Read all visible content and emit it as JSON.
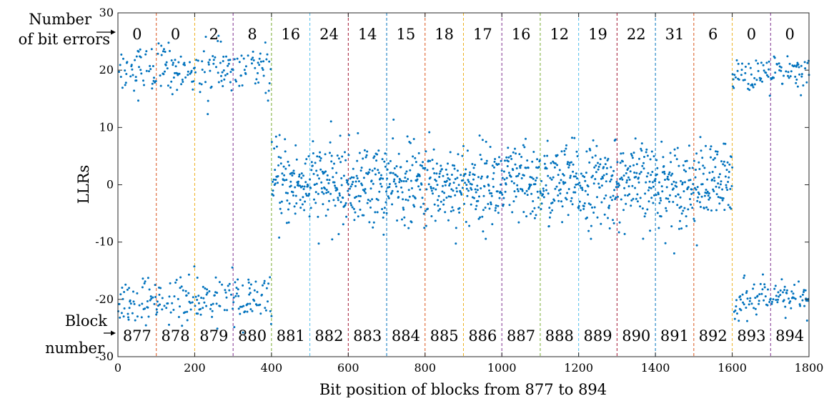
{
  "chart_data": {
    "type": "scatter",
    "title": "",
    "xlabel": "Bit position of blocks from 877 to 894",
    "ylabel": "LLRs",
    "xlim": [
      0,
      1800
    ],
    "ylim": [
      -30,
      30
    ],
    "x_ticks": [
      0,
      200,
      400,
      600,
      800,
      1000,
      1200,
      1400,
      1600,
      1800
    ],
    "x_tick_labels": [
      "0",
      "200",
      "400",
      "600",
      "800",
      "1000",
      "1200",
      "1400",
      "1600",
      "1800"
    ],
    "y_ticks": [
      -30,
      -20,
      -10,
      0,
      10,
      20,
      30
    ],
    "y_tick_labels": [
      "-30",
      "-20",
      "-10",
      "0",
      "10",
      "20",
      "30"
    ],
    "grid": false,
    "marker_color": "#0072BD",
    "block_width": 100,
    "blocks": [
      {
        "block": "877",
        "start": 0,
        "errors": "0",
        "bit_errors": 0,
        "divider_color": "#D95319"
      },
      {
        "block": "878",
        "start": 100,
        "errors": "0",
        "bit_errors": 0,
        "divider_color": "#EDB120"
      },
      {
        "block": "879",
        "start": 200,
        "errors": "2",
        "bit_errors": 2,
        "divider_color": "#7E2F8E"
      },
      {
        "block": "880",
        "start": 300,
        "errors": "8",
        "bit_errors": 8,
        "divider_color": "#77AC30"
      },
      {
        "block": "881",
        "start": 400,
        "errors": "16",
        "bit_errors": 16,
        "divider_color": "#4DBEEE"
      },
      {
        "block": "882",
        "start": 500,
        "errors": "24",
        "bit_errors": 24,
        "divider_color": "#A2142F"
      },
      {
        "block": "883",
        "start": 600,
        "errors": "14",
        "bit_errors": 14,
        "divider_color": "#0072BD"
      },
      {
        "block": "884",
        "start": 700,
        "errors": "15",
        "bit_errors": 15,
        "divider_color": "#D95319"
      },
      {
        "block": "885",
        "start": 800,
        "errors": "18",
        "bit_errors": 18,
        "divider_color": "#EDB120"
      },
      {
        "block": "886",
        "start": 900,
        "errors": "17",
        "bit_errors": 17,
        "divider_color": "#7E2F8E"
      },
      {
        "block": "887",
        "start": 1000,
        "errors": "16",
        "bit_errors": 16,
        "divider_color": "#77AC30"
      },
      {
        "block": "888",
        "start": 1100,
        "errors": "12",
        "bit_errors": 12,
        "divider_color": "#4DBEEE"
      },
      {
        "block": "889",
        "start": 1200,
        "errors": "19",
        "bit_errors": 19,
        "divider_color": "#A2142F"
      },
      {
        "block": "890",
        "start": 1300,
        "errors": "22",
        "bit_errors": 22,
        "divider_color": "#0072BD"
      },
      {
        "block": "891",
        "start": 1400,
        "errors": "31",
        "bit_errors": 31,
        "divider_color": "#D95319"
      },
      {
        "block": "892",
        "start": 1500,
        "errors": "6",
        "bit_errors": 6,
        "divider_color": "#EDB120"
      },
      {
        "block": "893",
        "start": 1600,
        "errors": "0",
        "bit_errors": 0,
        "divider_color": "#7E2F8E"
      },
      {
        "block": "894",
        "start": 1700,
        "errors": "0",
        "bit_errors": 0,
        "divider_color": "#77AC30"
      }
    ],
    "series": [
      {
        "note_regions": [
          {
            "x": [
              0,
              400
            ],
            "clusters": [
              {
                "mean": 20,
                "spread": 2.2
              },
              {
                "mean": -20,
                "spread": 2.0
              }
            ]
          },
          {
            "x": [
              400,
              1600
            ],
            "clusters": [
              {
                "mean": 0,
                "spread": 3.6
              }
            ]
          },
          {
            "x": [
              1600,
              1800
            ],
            "clusters": [
              {
                "mean": 19.5,
                "spread": 1.6
              },
              {
                "mean": -20,
                "spread": 1.6
              }
            ]
          }
        ]
      }
    ]
  },
  "annotations": {
    "errors_label_line1": "Number",
    "errors_label_line2": "of bit errors",
    "block_label_line1": "Block",
    "block_label_line2": "number"
  }
}
